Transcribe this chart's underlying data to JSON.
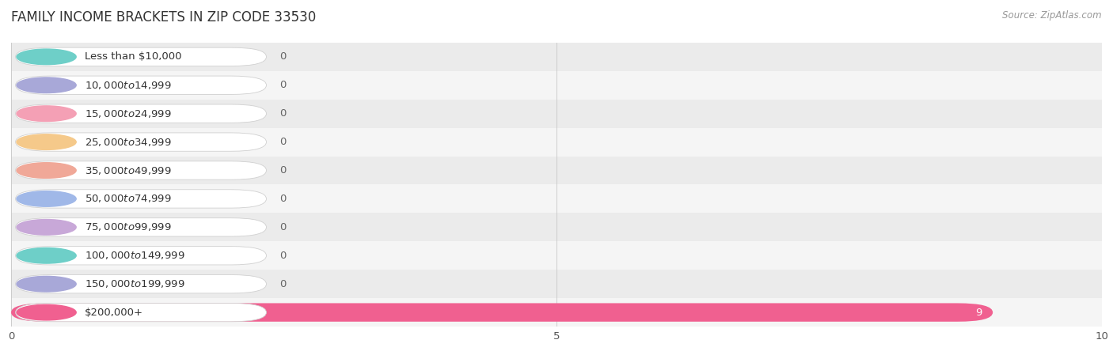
{
  "title": "FAMILY INCOME BRACKETS IN ZIP CODE 33530",
  "source": "Source: ZipAtlas.com",
  "categories": [
    "Less than $10,000",
    "$10,000 to $14,999",
    "$15,000 to $24,999",
    "$25,000 to $34,999",
    "$35,000 to $49,999",
    "$50,000 to $74,999",
    "$75,000 to $99,999",
    "$100,000 to $149,999",
    "$150,000 to $199,999",
    "$200,000+"
  ],
  "values": [
    0,
    0,
    0,
    0,
    0,
    0,
    0,
    0,
    0,
    9
  ],
  "bar_colors": [
    "#6ecfc8",
    "#a8a8d8",
    "#f4a0b5",
    "#f5c98a",
    "#f0a898",
    "#a0b8e8",
    "#c8a8d8",
    "#6ecfc8",
    "#a8a8d8",
    "#f06090"
  ],
  "xlim": [
    0,
    10
  ],
  "xticks": [
    0,
    5,
    10
  ],
  "background_color": "#ffffff",
  "bar_height": 0.65,
  "label_fontsize": 9.5,
  "title_fontsize": 12,
  "source_text": "Source: ZipAtlas.com"
}
